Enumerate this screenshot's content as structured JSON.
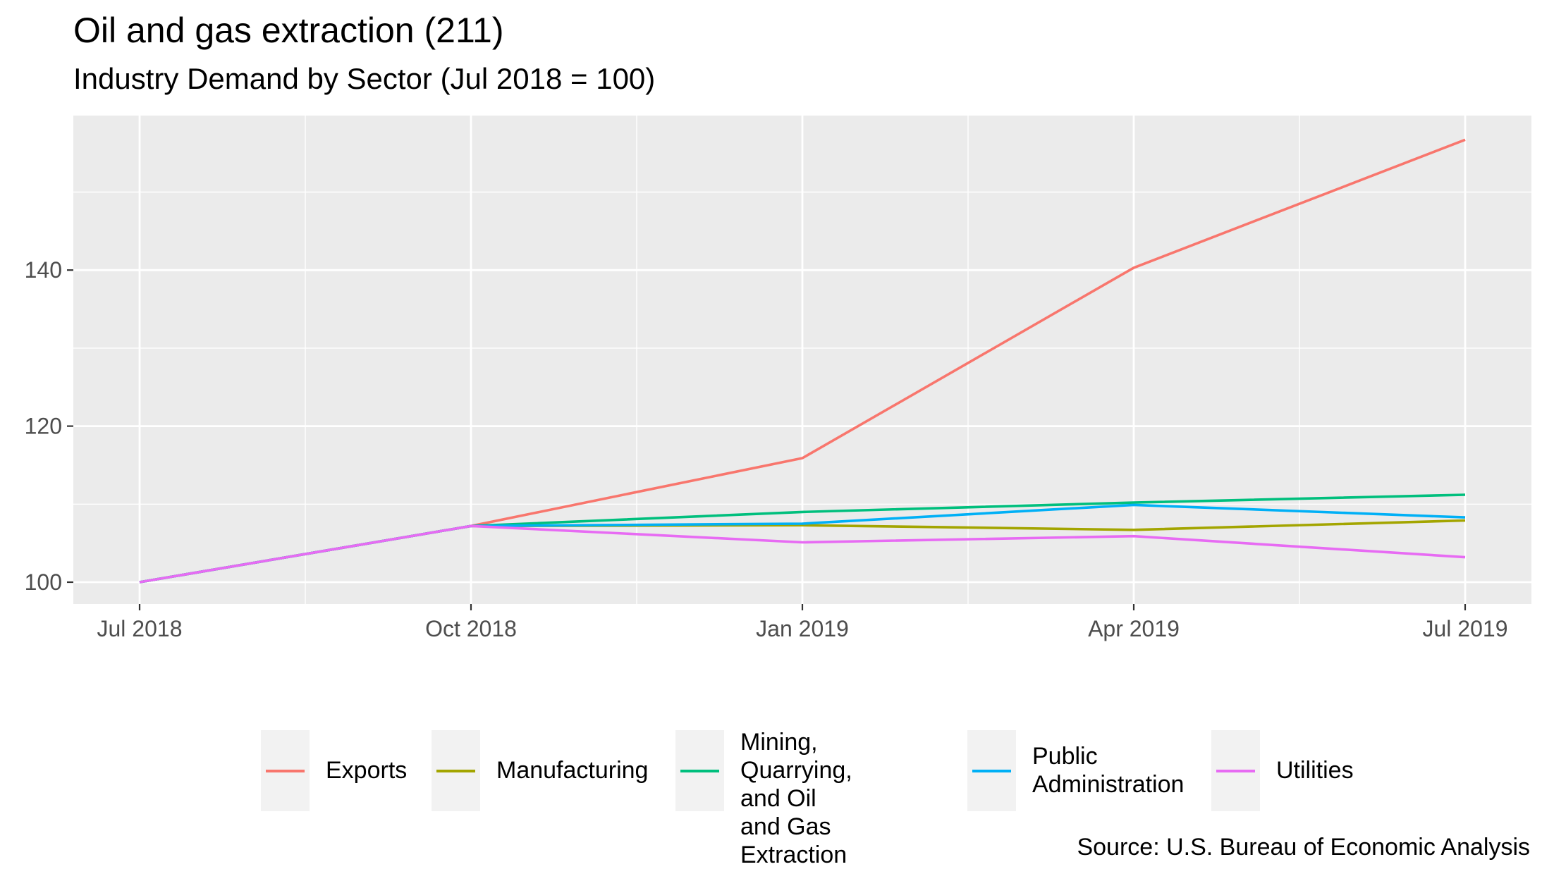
{
  "title": "Oil and gas extraction (211)",
  "subtitle": "Industry Demand by Sector (Jul 2018 = 100)",
  "caption": "Source: U.S. Bureau of Economic Analysis",
  "chart_data": {
    "type": "line",
    "title": "Oil and gas extraction (211)",
    "subtitle": "Industry Demand by Sector (Jul 2018 = 100)",
    "x": [
      "2018-07",
      "2018-10",
      "2019-01",
      "2019-04",
      "2019-07"
    ],
    "x_tick_labels": [
      "Jul 2018",
      "Oct 2018",
      "Jan 2019",
      "Apr 2019",
      "Jul 2019"
    ],
    "y_ticks": [
      100,
      120,
      140
    ],
    "ylim": [
      97.2,
      159.8
    ],
    "grid": true,
    "legend_position": "bottom",
    "series": [
      {
        "name": "Exports",
        "color": "#F8766D",
        "values": [
          100,
          107.2,
          115.9,
          140.3,
          156.7
        ]
      },
      {
        "name": "Manufacturing",
        "color": "#A3A500",
        "values": [
          100,
          107.2,
          107.3,
          106.7,
          107.9
        ]
      },
      {
        "name": "Mining, Quarrying,\nand Oil and Gas\nExtraction",
        "color": "#00BF7D",
        "values": [
          100,
          107.2,
          109.0,
          110.2,
          111.2
        ]
      },
      {
        "name": "Public\nAdministration",
        "color": "#00B0F6",
        "values": [
          100,
          107.2,
          107.5,
          109.9,
          108.3
        ]
      },
      {
        "name": "Utilities",
        "color": "#E76BF3",
        "values": [
          100,
          107.2,
          105.1,
          105.9,
          103.2
        ]
      }
    ]
  }
}
